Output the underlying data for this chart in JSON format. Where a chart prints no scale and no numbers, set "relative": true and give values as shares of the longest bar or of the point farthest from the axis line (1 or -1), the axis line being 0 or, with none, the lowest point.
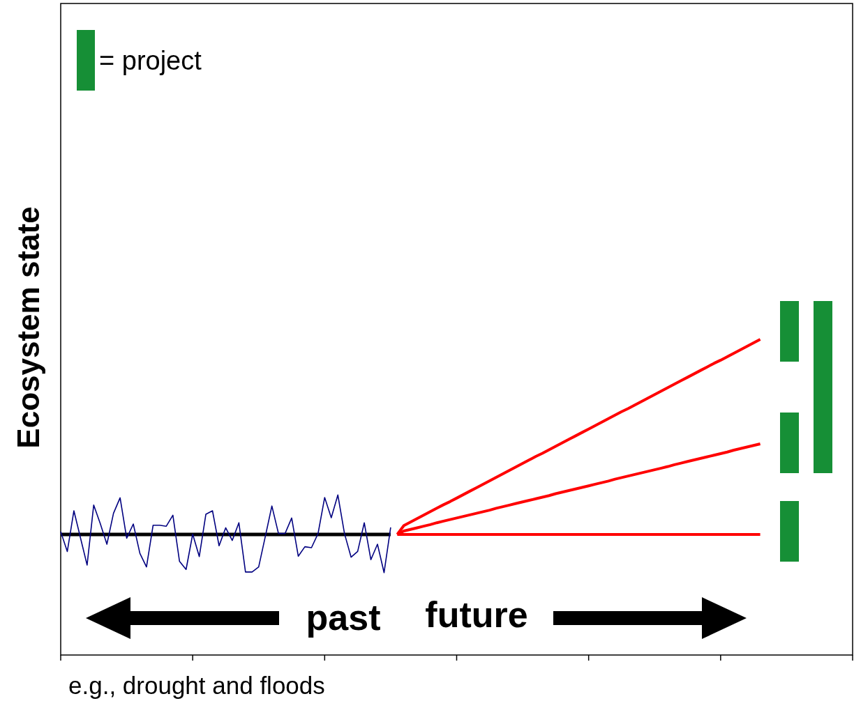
{
  "chart_data": {
    "type": "line",
    "relative": true,
    "ylabel": "Ecosystem state",
    "xlabel": "e.g., drought and floods",
    "annotations": [
      "= project",
      "past",
      "future"
    ],
    "categories": [
      null,
      null,
      null,
      null,
      null,
      null,
      null,
      null,
      null,
      null,
      null,
      null,
      null,
      null,
      null,
      null,
      null,
      null,
      null,
      null,
      null,
      null,
      null,
      null,
      null,
      null,
      null,
      null,
      null,
      null,
      null,
      null,
      null,
      null,
      null,
      null,
      null,
      null,
      null,
      null,
      null,
      null,
      null,
      null,
      null,
      null,
      null,
      null,
      null,
      null,
      null,
      null,
      null,
      null,
      null,
      null,
      null,
      null,
      null,
      null,
      null,
      null,
      null,
      null,
      null,
      null,
      null,
      null,
      null,
      null,
      null,
      null,
      null,
      null,
      null,
      null,
      null,
      null,
      null,
      null,
      null,
      null,
      null,
      null,
      null,
      null,
      null,
      null,
      null,
      null,
      null,
      null,
      null,
      null,
      null,
      null,
      null,
      null,
      null,
      null,
      null,
      null,
      null,
      null,
      null,
      null,
      null,
      null,
      null,
      null,
      null,
      null,
      null,
      null,
      null,
      null,
      null,
      null,
      null,
      null,
      null
    ],
    "grid": false,
    "line_style": "solid",
    "marker": "none",
    "series": [
      {
        "color": "#000000",
        "values": [
          0.382,
          0.382,
          0.382,
          0.382,
          0.382,
          0.382,
          0.382,
          0.382,
          0.382,
          0.382,
          0.382,
          0.382,
          0.382,
          0.382,
          0.382,
          0.382,
          0.382,
          0.382,
          0.382,
          0.382,
          0.382,
          0.382,
          0.382,
          0.382,
          0.382,
          0.382,
          0.382,
          0.382,
          0.382,
          0.382,
          0.382,
          0.382,
          0.382,
          0.382,
          0.382,
          0.382,
          0.382,
          0.382,
          0.382,
          0.382,
          0.382,
          0.382,
          0.382,
          0.382,
          0.382,
          0.382,
          0.382,
          0.382,
          0.382,
          0.382,
          0.382,
          null,
          null,
          null,
          null,
          null,
          null,
          null,
          null,
          null,
          null,
          null,
          null,
          null,
          null,
          null,
          null,
          null,
          null,
          null,
          null,
          null,
          null,
          null,
          null,
          null,
          null,
          null,
          null,
          null,
          null,
          null,
          null,
          null,
          null,
          null,
          null,
          null,
          null,
          null,
          null,
          null,
          null,
          null,
          null,
          null,
          null,
          null,
          null,
          null,
          null,
          null,
          null,
          null,
          null,
          null,
          null,
          null,
          null,
          null,
          null,
          null,
          null,
          null,
          null,
          null,
          null,
          null,
          null,
          null,
          null
        ]
      },
      {
        "color": "#000080",
        "values": [
          0.391,
          0.328,
          0.457,
          0.371,
          0.285,
          0.475,
          0.416,
          0.351,
          0.449,
          0.498,
          0.37,
          0.415,
          0.322,
          0.279,
          0.411,
          0.411,
          0.408,
          0.443,
          0.297,
          0.271,
          0.383,
          0.312,
          0.446,
          0.457,
          0.346,
          0.403,
          0.363,
          0.419,
          0.263,
          0.263,
          0.279,
          0.375,
          0.472,
          0.385,
          0.385,
          0.434,
          0.313,
          0.343,
          0.34,
          0.385,
          0.499,
          0.435,
          0.507,
          0.385,
          0.31,
          0.328,
          0.419,
          0.302,
          0.351,
          0.261,
          0.404,
          null,
          null,
          null,
          null,
          null,
          null,
          null,
          null,
          null,
          null,
          null,
          null,
          null,
          null,
          null,
          null,
          null,
          null,
          null,
          null,
          null,
          null,
          null,
          null,
          null,
          null,
          null,
          null,
          null,
          null,
          null,
          null,
          null,
          null,
          null,
          null,
          null,
          null,
          null,
          null,
          null,
          null,
          null,
          null,
          null,
          null,
          null,
          null,
          null,
          null,
          null,
          null,
          null,
          null,
          null,
          null,
          null,
          null,
          null,
          null,
          null,
          null,
          null,
          null,
          null,
          null,
          null,
          null,
          null,
          null
        ]
      },
      {
        "color": "#ff0000",
        "values": [
          null,
          null,
          null,
          null,
          null,
          null,
          null,
          null,
          null,
          null,
          null,
          null,
          null,
          null,
          null,
          null,
          null,
          null,
          null,
          null,
          null,
          null,
          null,
          null,
          null,
          null,
          null,
          null,
          null,
          null,
          null,
          null,
          null,
          null,
          null,
          null,
          null,
          null,
          null,
          null,
          null,
          null,
          null,
          null,
          null,
          null,
          null,
          null,
          null,
          null,
          null,
          0.382,
          0.382,
          0.382,
          0.382,
          0.382,
          0.382,
          0.382,
          0.382,
          0.382,
          0.382,
          0.382,
          0.382,
          0.382,
          0.382,
          0.382,
          0.382,
          0.382,
          0.382,
          0.382,
          0.382,
          0.382,
          0.382,
          0.382,
          0.382,
          0.382,
          0.382,
          0.382,
          0.382,
          0.382,
          0.382,
          0.382,
          0.382,
          0.382,
          0.382,
          0.382,
          0.382,
          0.382,
          0.382,
          0.382,
          0.382,
          0.382,
          0.382,
          0.382,
          0.382,
          0.382,
          0.382,
          0.382,
          0.382,
          0.382,
          0.382,
          0.382,
          0.382,
          0.382,
          0.382,
          0.382,
          0.382,
          null,
          null,
          null,
          null,
          null,
          null,
          null,
          null,
          null,
          null,
          null,
          null,
          null,
          null
        ]
      },
      {
        "color": "#ff0000",
        "values": [
          null,
          null,
          null,
          null,
          null,
          null,
          null,
          null,
          null,
          null,
          null,
          null,
          null,
          null,
          null,
          null,
          null,
          null,
          null,
          null,
          null,
          null,
          null,
          null,
          null,
          null,
          null,
          null,
          null,
          null,
          null,
          null,
          null,
          null,
          null,
          null,
          null,
          null,
          null,
          null,
          null,
          null,
          null,
          null,
          null,
          null,
          null,
          null,
          null,
          null,
          null,
          0.382,
          0.393,
          0.398,
          0.403,
          0.408,
          0.413,
          0.419,
          0.424,
          0.429,
          0.434,
          0.439,
          0.444,
          0.449,
          0.454,
          0.459,
          0.465,
          0.47,
          0.475,
          0.48,
          0.485,
          0.49,
          0.495,
          0.5,
          0.505,
          0.511,
          0.516,
          0.521,
          0.526,
          0.531,
          0.536,
          0.541,
          0.546,
          0.551,
          0.557,
          0.562,
          0.567,
          0.572,
          0.577,
          0.582,
          0.587,
          0.592,
          0.597,
          0.603,
          0.608,
          0.613,
          0.618,
          0.623,
          0.628,
          0.633,
          0.638,
          0.643,
          0.649,
          0.654,
          0.659,
          0.664,
          0.669,
          null,
          null,
          null,
          null,
          null,
          null,
          null,
          null,
          null,
          null,
          null,
          null,
          null,
          null
        ]
      },
      {
        "color": "#ff0000",
        "values": [
          null,
          null,
          null,
          null,
          null,
          null,
          null,
          null,
          null,
          null,
          null,
          null,
          null,
          null,
          null,
          null,
          null,
          null,
          null,
          null,
          null,
          null,
          null,
          null,
          null,
          null,
          null,
          null,
          null,
          null,
          null,
          null,
          null,
          null,
          null,
          null,
          null,
          null,
          null,
          null,
          null,
          null,
          null,
          null,
          null,
          null,
          null,
          null,
          null,
          null,
          null,
          0.382,
          0.41,
          0.421,
          0.432,
          0.443,
          0.454,
          0.465,
          0.476,
          0.486,
          0.497,
          0.508,
          0.519,
          0.53,
          0.541,
          0.552,
          0.563,
          0.574,
          0.585,
          0.596,
          0.607,
          0.618,
          0.629,
          0.639,
          0.65,
          0.661,
          0.672,
          0.683,
          0.694,
          0.705,
          0.716,
          0.727,
          0.738,
          0.749,
          0.76,
          0.771,
          0.781,
          0.792,
          0.803,
          0.814,
          0.825,
          0.836,
          0.847,
          0.858,
          0.869,
          0.88,
          0.891,
          0.902,
          0.913,
          0.924,
          0.934,
          0.945,
          0.956,
          0.967,
          0.978,
          0.989,
          1.0,
          null,
          null,
          null,
          null,
          null,
          null,
          null,
          null,
          null,
          null,
          null,
          null,
          null,
          null
        ]
      }
    ]
  }
}
